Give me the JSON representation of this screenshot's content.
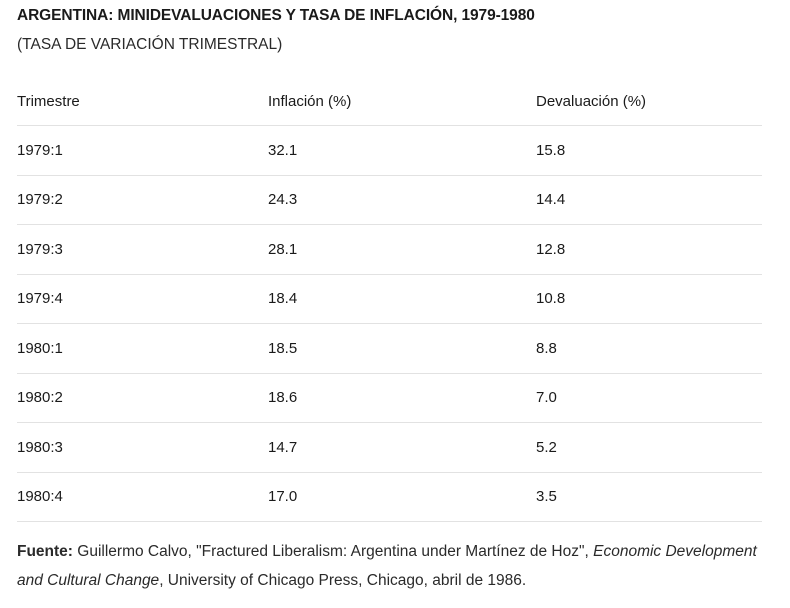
{
  "title": "ARGENTINA: MINIDEVALUACIONES Y TASA DE INFLACIÓN, 1979-1980",
  "subtitle": "(TASA DE VARIACIÓN TRIMESTRAL)",
  "table": {
    "headers": [
      "Trimestre",
      "Inflación (%)",
      "Devaluación (%)"
    ],
    "rows": [
      [
        "1979:1",
        "32.1",
        "15.8"
      ],
      [
        "1979:2",
        "24.3",
        "14.4"
      ],
      [
        "1979:3",
        "28.1",
        "12.8"
      ],
      [
        "1979:4",
        "18.4",
        "10.8"
      ],
      [
        "1980:1",
        "18.5",
        "8.8"
      ],
      [
        "1980:2",
        "18.6",
        "7.0"
      ],
      [
        "1980:3",
        "14.7",
        "5.2"
      ],
      [
        "1980:4",
        "17.0",
        "3.5"
      ]
    ]
  },
  "source": {
    "label": "Fuente:",
    "text1": " Guillermo Calvo, \"Fractured Liberalism: Argentina under Martínez de Hoz\", ",
    "italic": "Economic Development and Cultural Change",
    "text2": ", University of Chicago Press, Chicago, abril de 1986."
  }
}
